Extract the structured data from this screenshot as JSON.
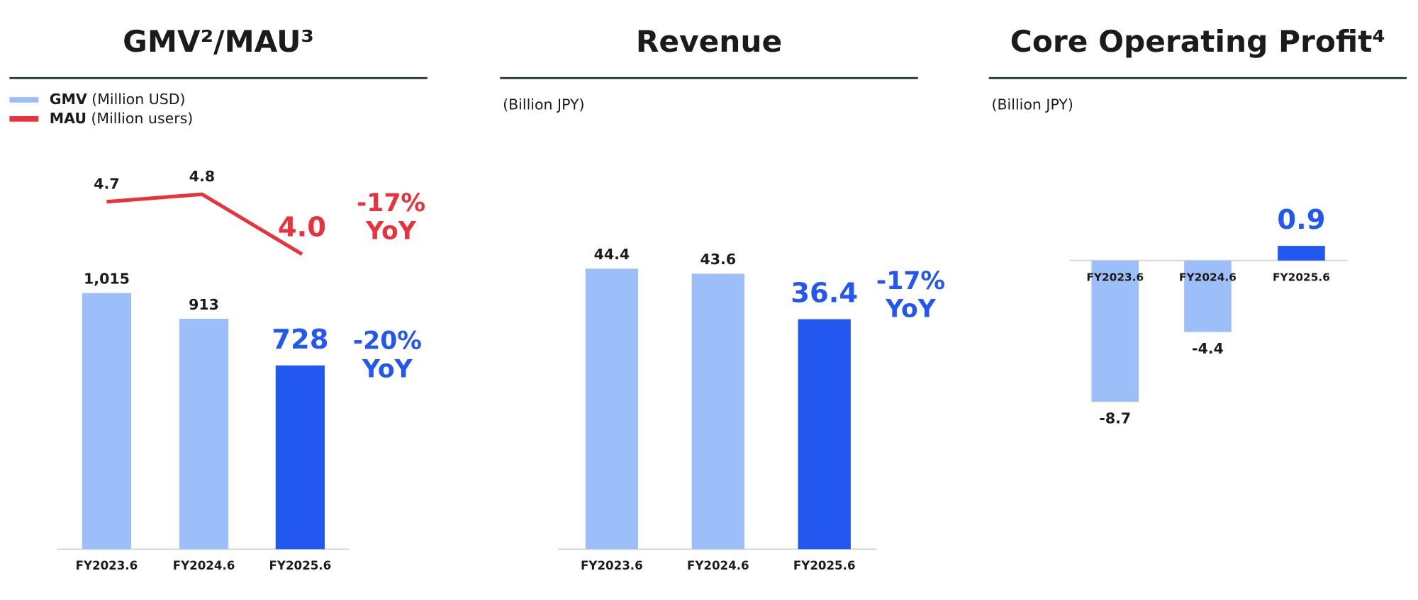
{
  "chart_data": [
    {
      "type": "bar_line",
      "title": "GMV²/MAU³",
      "categories": [
        "FY2023.6",
        "FY2024.6",
        "FY2025.6"
      ],
      "series": [
        {
          "name": "GMV",
          "unit": "(Million USD)",
          "color": "#9dbff9",
          "colors": [
            "#9dbff9",
            "#9dbff9",
            "#2358f0"
          ],
          "values": [
            1015,
            913,
            728
          ],
          "value_labels": [
            "1,015",
            "913",
            "728"
          ]
        },
        {
          "name": "MAU",
          "unit": "(Million users)",
          "color": "#e8323c",
          "values": [
            4.7,
            4.8,
            4.0
          ],
          "value_labels": [
            "4.7",
            "4.8",
            "4.0"
          ],
          "axis": "y2"
        }
      ],
      "annotations": [
        {
          "lines": [
            "-17%",
            "YoY"
          ],
          "color": "#e8323c"
        },
        {
          "lines": [
            "-20%",
            "YoY"
          ],
          "color": "#2358f0"
        }
      ]
    },
    {
      "type": "bar",
      "title": "Revenue",
      "subtitle": "(Billion JPY)",
      "categories": [
        "FY2023.6",
        "FY2024.6",
        "FY2025.6"
      ],
      "series": [
        {
          "colors": [
            "#9dbff9",
            "#9dbff9",
            "#2358f0"
          ],
          "values": [
            44.4,
            43.6,
            36.4
          ]
        }
      ],
      "annotations": [
        {
          "lines": [
            "-17%",
            "YoY"
          ],
          "color": "#2358f0"
        }
      ]
    },
    {
      "type": "bar",
      "title": "Core Operating Profit⁴",
      "subtitle": "(Billion JPY)",
      "categories": [
        "FY2023.6",
        "FY2024.6",
        "FY2025.6"
      ],
      "series": [
        {
          "colors": [
            "#9dbff9",
            "#9dbff9",
            "#2358f0"
          ],
          "values": [
            -8.7,
            -4.4,
            0.9
          ]
        }
      ]
    }
  ]
}
